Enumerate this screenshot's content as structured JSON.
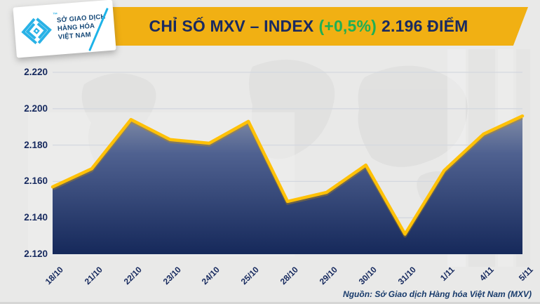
{
  "header": {
    "title_prefix": "CHỈ SỐ MXV – INDEX",
    "change_percent": "(+0,5%)",
    "title_value": "2.196 ĐIỂM",
    "banner_color": "#F1B013",
    "title_color": "#1A2A60",
    "change_color": "#1FAF54"
  },
  "logo": {
    "line1": "SỞ GIAO DỊCH",
    "line2": "HÀNG HÓA",
    "line3": "VIỆT NAM",
    "trademark": "™",
    "mark_color": "#29B2E6"
  },
  "footer": {
    "source": "Nguồn: Sở Giao dịch Hàng hóa Việt Nam (MXV)"
  },
  "chart_data": {
    "type": "area",
    "title": "CHỈ SỐ MXV – INDEX (+0,5%) 2.196 ĐIỂM",
    "categories": [
      "18/10",
      "21/10",
      "22/10",
      "23/10",
      "24/10",
      "25/10",
      "28/10",
      "29/10",
      "30/10",
      "31/10",
      "1/11",
      "4/11",
      "5/11"
    ],
    "values": [
      2157,
      2167,
      2194,
      2183,
      2181,
      2193,
      2149,
      2154,
      2169,
      2131,
      2166,
      2186,
      2196
    ],
    "ylim": [
      2120,
      2220
    ],
    "yticks": [
      "2.220",
      "2.200",
      "2.180",
      "2.160",
      "2.140",
      "2.120"
    ],
    "ytick_values": [
      2220,
      2200,
      2180,
      2160,
      2140,
      2120
    ],
    "xlabel": "",
    "ylabel": "",
    "grid": true,
    "legend": "none",
    "line_color": "#FFC107",
    "line_shadow_color": "#C98F00",
    "area_gradient_top": "#8D97AC",
    "area_gradient_mid": "#4F6190",
    "area_gradient_bottom": "#142759",
    "grid_color": "#D4D8DF",
    "label_color": "#16295E"
  }
}
